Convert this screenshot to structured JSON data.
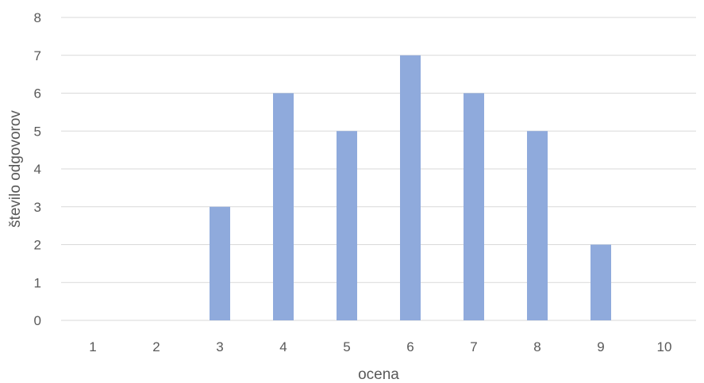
{
  "chart_data": {
    "type": "bar",
    "title": "",
    "xlabel": "ocena",
    "ylabel": "število odgovorov",
    "categories": [
      "1",
      "2",
      "3",
      "4",
      "5",
      "6",
      "7",
      "8",
      "9",
      "10"
    ],
    "values": [
      0,
      0,
      3,
      6,
      5,
      7,
      6,
      5,
      2,
      0
    ],
    "ylim": [
      0,
      8
    ],
    "yticks": [
      "0",
      "1",
      "2",
      "3",
      "4",
      "5",
      "6",
      "7",
      "8"
    ],
    "grid": true,
    "bar_color": "#8faadc"
  }
}
